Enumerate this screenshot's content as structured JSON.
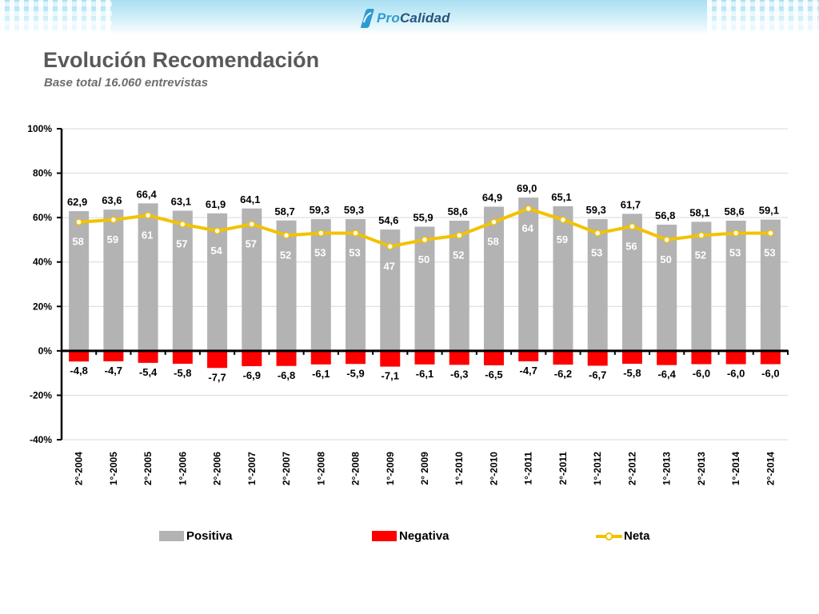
{
  "header": {
    "logo_text_pro": "Pro",
    "logo_text_calidad": "Calidad",
    "logo_icon": "procalidad-logo-icon"
  },
  "title": "Evolución Recomendación",
  "subtitle": "Base total 16.060 entrevistas",
  "colors": {
    "positiva": "#b3b3b3",
    "negativa": "#ff0000",
    "neta": "#f2c200",
    "label_light": "#ffffff",
    "label_dark": "#000000"
  },
  "chart_data": {
    "type": "bar",
    "categories": [
      "2°-2004",
      "1°-2005",
      "2°-2005",
      "1°-2006",
      "2°-2006",
      "1°-2007",
      "2°-2007",
      "1°-2008",
      "2°-2008",
      "1°-2009",
      "2° 2009",
      "1°-2010",
      "2°-2010",
      "1°-2011",
      "2°-2011",
      "1°-2012",
      "2°-2012",
      "1°-2013",
      "2°-2013",
      "1°-2014",
      "2°-2014"
    ],
    "series": [
      {
        "name": "Positiva",
        "type": "bar",
        "values": [
          62.9,
          63.6,
          66.4,
          63.1,
          61.9,
          64.1,
          58.7,
          59.3,
          59.3,
          54.6,
          55.9,
          58.6,
          64.9,
          69.0,
          65.1,
          59.3,
          61.7,
          56.8,
          58.1,
          58.6,
          59.1
        ]
      },
      {
        "name": "Negativa",
        "type": "bar",
        "values": [
          -4.8,
          -4.7,
          -5.4,
          -5.8,
          -7.7,
          -6.9,
          -6.8,
          -6.1,
          -5.9,
          -7.1,
          -6.1,
          -6.3,
          -6.5,
          -4.7,
          -6.2,
          -6.7,
          -5.8,
          -6.4,
          -6.0,
          -6.0,
          -6.0
        ]
      },
      {
        "name": "Neta",
        "type": "line",
        "values": [
          58,
          59,
          61,
          57,
          54,
          57,
          52,
          53,
          53,
          47,
          50,
          52,
          58,
          64,
          59,
          53,
          56,
          50,
          52,
          53,
          53
        ]
      }
    ],
    "positive_labels": [
      "62,9",
      "63,6",
      "66,4",
      "63,1",
      "61,9",
      "64,1",
      "58,7",
      "59,3",
      "59,3",
      "54,6",
      "55,9",
      "58,6",
      "64,9",
      "69,0",
      "65,1",
      "59,3",
      "61,7",
      "56,8",
      "58,1",
      "58,6",
      "59,1"
    ],
    "negative_labels": [
      "-4,8",
      "-4,7",
      "-5,4",
      "-5,8",
      "-7,7",
      "-6,9",
      "-6,8",
      "-6,1",
      "-5,9",
      "-7,1",
      "-6,1",
      "-6,3",
      "-6,5",
      "-4,7",
      "-6,2",
      "-6,7",
      "-5,8",
      "-6,4",
      "-6,0",
      "-6,0",
      "-6,0"
    ],
    "net_labels": [
      "58",
      "59",
      "61",
      "57",
      "54",
      "57",
      "52",
      "53",
      "53",
      "47",
      "50",
      "52",
      "58",
      "64",
      "59",
      "53",
      "56",
      "50",
      "52",
      "53",
      "53"
    ],
    "y_ticks": [
      100,
      80,
      60,
      40,
      20,
      0,
      -20,
      -40
    ],
    "y_tick_labels": [
      "100%",
      "80%",
      "60%",
      "40%",
      "20%",
      "0%",
      "-20%",
      "-40%"
    ],
    "ylim": [
      -40,
      100
    ],
    "grid": true,
    "legend_position": "bottom"
  }
}
